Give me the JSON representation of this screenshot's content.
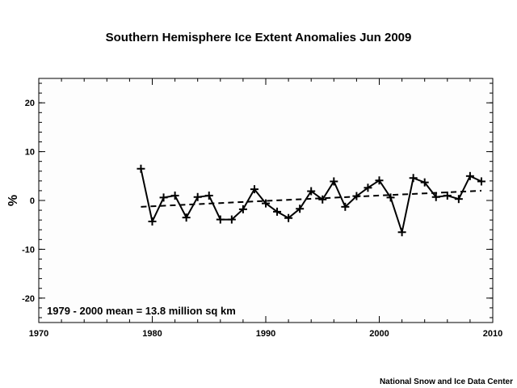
{
  "chart_data": {
    "type": "line",
    "title": "Southern Hemisphere Ice Extent Anomalies Jun 2009",
    "ylabel": "%",
    "xlabel": "",
    "xlim": [
      1970,
      2010
    ],
    "ylim": [
      -25,
      25
    ],
    "xticks": [
      1970,
      1980,
      1990,
      2000,
      2010
    ],
    "xtick_labels": [
      "1970",
      "1980",
      "1990",
      "2000",
      "2010"
    ],
    "yticks": [
      20,
      10,
      0,
      -10,
      -20
    ],
    "ytick_labels": [
      "20",
      "10",
      "0",
      "-10",
      "-20"
    ],
    "grid": false,
    "series": [
      {
        "style": "solid-with-plus-markers",
        "x": [
          1979,
          1980,
          1981,
          1982,
          1983,
          1984,
          1985,
          1986,
          1987,
          1988,
          1989,
          1990,
          1991,
          1992,
          1993,
          1994,
          1995,
          1996,
          1997,
          1998,
          1999,
          2000,
          2001,
          2002,
          2003,
          2004,
          2005,
          2006,
          2007,
          2008,
          2009
        ],
        "values": [
          6.5,
          -4.3,
          0.6,
          1.0,
          -3.5,
          0.7,
          1.0,
          -3.9,
          -3.9,
          -1.8,
          2.3,
          -0.6,
          -2.3,
          -3.6,
          -1.7,
          1.9,
          0.2,
          3.9,
          -1.3,
          0.9,
          2.6,
          4.1,
          0.6,
          -6.5,
          4.6,
          3.7,
          0.7,
          1.0,
          0.3,
          5.0,
          3.9
        ]
      },
      {
        "style": "dashed-trend",
        "x": [
          1979,
          2009
        ],
        "values": [
          -1.3,
          2.0
        ]
      }
    ],
    "annotations": [
      {
        "text": "1979 - 2000 mean = 13.8 million sq km",
        "position": "bottom-left"
      }
    ],
    "credit": "National Snow and Ice Data Center"
  }
}
